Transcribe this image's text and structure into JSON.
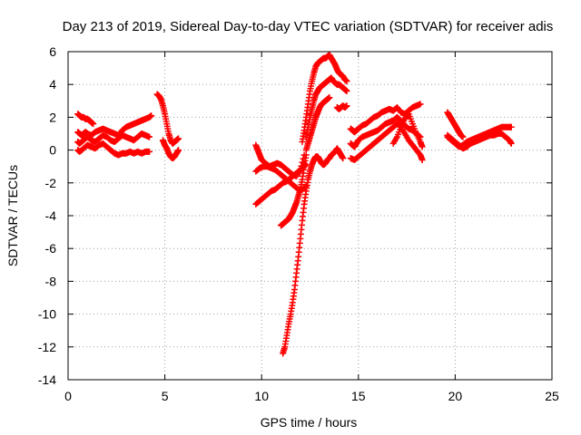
{
  "chart_data": {
    "type": "scatter",
    "title": "Day 213 of 2019, Sidereal Day-to-day VTEC variation (SDTVAR) for receiver adis",
    "xlabel": "GPS time / hours",
    "ylabel": "SDTVAR / TECUs",
    "xlim": [
      0,
      25
    ],
    "ylim": [
      -14,
      6
    ],
    "xticks": [
      0,
      5,
      10,
      15,
      20,
      25
    ],
    "yticks": [
      -14,
      -12,
      -10,
      -8,
      -6,
      -4,
      -2,
      0,
      2,
      4,
      6
    ],
    "grid": true,
    "marker": "plus",
    "color": "#ff0000",
    "series": [
      {
        "name": "",
        "x": [
          0.5,
          0.6,
          0.7,
          0.8,
          0.9,
          1.0,
          1.1,
          1.2,
          1.3
        ],
        "y": [
          2.2,
          2.1,
          2.0,
          2.0,
          1.9,
          1.9,
          1.8,
          1.7,
          1.6
        ]
      },
      {
        "name": "",
        "x": [
          0.5,
          0.6,
          0.7,
          0.8,
          0.9,
          1.0,
          1.2,
          1.4,
          1.6,
          1.8,
          2.0,
          2.2,
          2.4,
          2.6,
          2.8,
          3.0,
          3.2,
          3.4,
          3.6,
          3.8,
          4.0,
          4.2,
          4.3
        ],
        "y": [
          1.1,
          1.0,
          0.9,
          1.0,
          1.1,
          1.0,
          0.9,
          1.1,
          1.2,
          1.3,
          1.2,
          1.1,
          1.0,
          0.9,
          1.2,
          1.4,
          1.5,
          1.6,
          1.7,
          1.8,
          1.9,
          2.0,
          2.1
        ]
      },
      {
        "name": "",
        "x": [
          0.5,
          0.6,
          0.8,
          1.0,
          1.2,
          1.4,
          1.6,
          1.8,
          2.0,
          2.2,
          2.4,
          2.6,
          2.8,
          3.0,
          3.2,
          3.4,
          3.6,
          3.8,
          4.0,
          4.2
        ],
        "y": [
          0.5,
          0.4,
          0.6,
          0.8,
          0.6,
          0.5,
          0.7,
          0.9,
          0.8,
          0.6,
          0.5,
          0.7,
          0.9,
          0.8,
          0.7,
          0.6,
          0.8,
          1.0,
          0.9,
          0.8
        ]
      },
      {
        "name": "",
        "x": [
          0.5,
          0.6,
          0.8,
          1.0,
          1.2,
          1.4,
          1.6,
          1.8,
          2.0,
          2.2,
          2.4,
          2.6,
          2.8,
          3.0,
          3.2,
          3.4,
          3.6,
          3.8,
          4.0,
          4.2
        ],
        "y": [
          0.0,
          -0.1,
          0.1,
          0.3,
          0.2,
          0.1,
          0.3,
          0.4,
          0.2,
          0.0,
          -0.2,
          -0.3,
          -0.2,
          -0.2,
          -0.1,
          -0.2,
          -0.1,
          -0.2,
          -0.1,
          -0.1
        ]
      },
      {
        "name": "",
        "x": [
          4.6,
          4.7,
          4.8,
          4.9,
          5.0,
          5.1,
          5.2,
          5.3,
          5.4,
          5.5,
          5.6,
          5.7
        ],
        "y": [
          3.4,
          3.3,
          3.1,
          2.7,
          2.2,
          1.6,
          1.0,
          0.6,
          0.4,
          0.5,
          0.6,
          0.7
        ]
      },
      {
        "name": "",
        "x": [
          4.9,
          5.0,
          5.1,
          5.2,
          5.3,
          5.4,
          5.5,
          5.6,
          5.7
        ],
        "y": [
          0.6,
          0.3,
          0.1,
          -0.2,
          -0.4,
          -0.5,
          -0.4,
          -0.2,
          0.0
        ]
      },
      {
        "name": "",
        "x": [
          9.7,
          9.8,
          9.9,
          10.0,
          10.2,
          10.4,
          10.6,
          10.8,
          11.0,
          11.2,
          11.4,
          11.6,
          11.8,
          12.0,
          12.2
        ],
        "y": [
          0.3,
          0.0,
          -0.3,
          -0.6,
          -0.8,
          -1.0,
          -0.9,
          -0.8,
          -0.9,
          -1.1,
          -1.3,
          -1.5,
          -1.6,
          -1.2,
          -0.3
        ]
      },
      {
        "name": "",
        "x": [
          9.7,
          9.9,
          10.1,
          10.3,
          10.5,
          10.7,
          10.9,
          11.1,
          11.3,
          11.5,
          11.7,
          11.9,
          12.1,
          12.3
        ],
        "y": [
          -1.3,
          -1.1,
          -1.0,
          -1.0,
          -1.1,
          -1.2,
          -1.4,
          -1.6,
          -1.8,
          -2.0,
          -2.2,
          -2.4,
          -2.4,
          -2.2
        ]
      },
      {
        "name": "",
        "x": [
          9.7,
          9.9,
          10.1,
          10.3,
          10.5,
          10.7,
          10.9,
          11.1,
          11.3,
          11.5,
          11.7,
          11.9,
          12.1,
          12.3
        ],
        "y": [
          -3.3,
          -3.1,
          -2.9,
          -2.7,
          -2.5,
          -2.4,
          -2.2,
          -2.0,
          -1.9,
          -1.7,
          -1.5,
          -1.3,
          -1.1,
          -0.9
        ]
      },
      {
        "name": "",
        "x": [
          11.0,
          11.1,
          11.2,
          11.3,
          11.4,
          11.5,
          11.6,
          11.7,
          11.8,
          11.9,
          12.0,
          12.1,
          12.2,
          12.3
        ],
        "y": [
          -4.6,
          -4.5,
          -4.4,
          -4.3,
          -4.2,
          -4.0,
          -3.8,
          -3.5,
          -3.2,
          -2.8,
          -2.4,
          -1.8,
          -1.0,
          -0.3
        ]
      },
      {
        "name": "",
        "x": [
          11.1,
          11.2,
          11.3,
          11.4,
          11.5,
          11.6,
          11.7,
          11.8,
          11.9,
          12.0,
          12.1,
          12.2,
          12.3,
          12.4,
          12.5,
          12.6,
          12.7,
          12.8,
          12.9,
          13.0,
          13.1,
          13.2,
          13.3,
          13.4,
          13.5,
          13.6,
          13.7,
          13.8,
          13.9,
          14.0,
          14.1,
          14.2
        ],
        "y": [
          -12.4,
          -12.0,
          -11.3,
          -10.6,
          -10.0,
          -9.3,
          -8.5,
          -7.5,
          -6.5,
          -5.4,
          -4.3,
          -3.3,
          -2.5,
          -1.8,
          -1.3,
          -0.9,
          -0.6,
          -0.4,
          -0.4,
          -0.6,
          -0.8,
          -0.9,
          -0.8,
          -0.6,
          -0.5,
          -0.3,
          -0.2,
          -0.1,
          0.1,
          -0.1,
          -0.3,
          -0.5
        ]
      },
      {
        "name": "",
        "x": [
          12.1,
          12.2,
          12.3,
          12.4,
          12.5,
          12.6,
          12.7,
          12.8,
          12.9,
          13.0,
          13.1,
          13.2,
          13.3,
          13.4,
          13.5,
          13.6,
          13.7,
          13.8,
          13.9,
          14.0,
          14.1,
          14.2,
          14.3,
          14.4
        ],
        "y": [
          0.5,
          1.2,
          2.0,
          2.8,
          3.6,
          4.2,
          4.7,
          5.1,
          5.3,
          5.4,
          5.5,
          5.6,
          5.6,
          5.7,
          5.8,
          5.6,
          5.4,
          5.2,
          4.9,
          4.7,
          4.6,
          4.5,
          4.3,
          4.2
        ]
      },
      {
        "name": "",
        "x": [
          12.3,
          12.4,
          12.5,
          12.6,
          12.7,
          12.8,
          12.9,
          13.0,
          13.1,
          13.2,
          13.3,
          13.4,
          13.5,
          13.6,
          13.7,
          13.8,
          13.9,
          14.0,
          14.1,
          14.2,
          14.3,
          14.4
        ],
        "y": [
          0.8,
          1.4,
          2.0,
          2.5,
          3.0,
          3.4,
          3.6,
          3.8,
          3.9,
          4.0,
          4.1,
          4.2,
          4.3,
          4.4,
          4.2,
          4.1,
          4.0,
          4.0,
          3.9,
          3.8,
          3.7,
          3.6
        ]
      },
      {
        "name": "",
        "x": [
          12.3,
          12.4,
          12.5,
          12.6,
          12.7,
          12.8,
          12.9,
          13.0,
          13.1,
          13.2,
          13.3,
          13.4,
          13.5
        ],
        "y": [
          0.0,
          0.4,
          0.8,
          1.2,
          1.6,
          2.0,
          2.3,
          2.6,
          2.8,
          2.9,
          3.0,
          3.1,
          3.2
        ]
      },
      {
        "name": "",
        "x": [
          13.9,
          14.0,
          14.1,
          14.2,
          14.3,
          14.4
        ],
        "y": [
          2.6,
          2.5,
          2.6,
          2.7,
          2.6,
          2.7
        ]
      },
      {
        "name": "",
        "x": [
          14.6,
          14.7,
          14.8,
          14.9,
          15.0,
          15.2,
          15.4,
          15.6,
          15.8,
          16.0,
          16.2,
          16.4,
          16.6,
          16.8,
          17.0,
          17.2,
          17.4,
          17.6,
          17.8,
          18.0,
          18.2
        ],
        "y": [
          1.3,
          1.2,
          1.1,
          1.2,
          1.3,
          1.5,
          1.6,
          1.8,
          2.0,
          2.1,
          2.3,
          2.4,
          2.5,
          2.4,
          2.6,
          2.3,
          2.2,
          2.4,
          2.6,
          2.7,
          2.8
        ]
      },
      {
        "name": "",
        "x": [
          14.6,
          14.7,
          14.8,
          14.9,
          15.0,
          15.2,
          15.4,
          15.6,
          15.8,
          16.0,
          16.2,
          16.4,
          16.6,
          16.8,
          17.0,
          17.2,
          17.4,
          17.6,
          17.8,
          18.0,
          18.2
        ],
        "y": [
          0.4,
          0.3,
          0.2,
          0.4,
          0.6,
          0.8,
          0.9,
          1.0,
          1.1,
          1.2,
          1.4,
          1.6,
          1.7,
          1.8,
          2.0,
          1.8,
          1.5,
          1.3,
          1.2,
          1.0,
          0.8
        ]
      },
      {
        "name": "",
        "x": [
          14.6,
          14.8,
          15.0,
          15.2,
          15.4,
          15.6,
          15.8,
          16.0,
          16.2,
          16.4,
          16.6,
          16.8,
          17.0,
          17.2,
          17.4,
          17.6,
          17.8,
          18.0,
          18.2,
          18.3
        ],
        "y": [
          -0.5,
          -0.6,
          -0.4,
          -0.2,
          0.0,
          0.2,
          0.4,
          0.6,
          0.8,
          1.0,
          1.2,
          1.4,
          1.6,
          1.4,
          1.0,
          0.6,
          0.3,
          0.0,
          -0.3,
          -0.6
        ]
      },
      {
        "name": "",
        "x": [
          16.8,
          17.0,
          17.2,
          17.4,
          17.6,
          17.8,
          18.0,
          18.2,
          18.3
        ],
        "y": [
          0.4,
          0.8,
          1.4,
          1.9,
          2.2,
          1.6,
          1.0,
          0.5,
          0.2
        ]
      },
      {
        "name": "",
        "x": [
          19.6,
          19.7,
          19.8,
          19.9,
          20.0,
          20.1,
          20.2,
          20.3,
          20.4
        ],
        "y": [
          2.3,
          2.1,
          1.9,
          1.7,
          1.5,
          1.3,
          1.1,
          0.9,
          0.8
        ]
      },
      {
        "name": "",
        "x": [
          19.6,
          19.8,
          20.0,
          20.2,
          20.4,
          20.6,
          20.8,
          21.0,
          21.2,
          21.4,
          21.6,
          21.8,
          22.0,
          22.2,
          22.4,
          22.6,
          22.8,
          22.9
        ],
        "y": [
          0.8,
          0.6,
          0.4,
          0.2,
          0.3,
          0.5,
          0.6,
          0.7,
          0.8,
          0.9,
          1.0,
          1.1,
          1.2,
          1.3,
          1.4,
          1.4,
          1.4,
          1.4
        ]
      },
      {
        "name": "",
        "x": [
          19.6,
          19.8,
          20.0,
          20.2,
          20.4,
          20.6,
          20.8,
          21.0,
          21.2,
          21.4,
          21.6,
          21.8,
          22.0,
          22.2,
          22.4,
          22.6,
          22.8,
          22.9
        ],
        "y": [
          0.9,
          0.7,
          0.5,
          0.3,
          0.1,
          0.2,
          0.4,
          0.5,
          0.6,
          0.7,
          0.8,
          0.9,
          0.9,
          1.0,
          1.0,
          0.8,
          0.6,
          0.4
        ]
      }
    ]
  }
}
